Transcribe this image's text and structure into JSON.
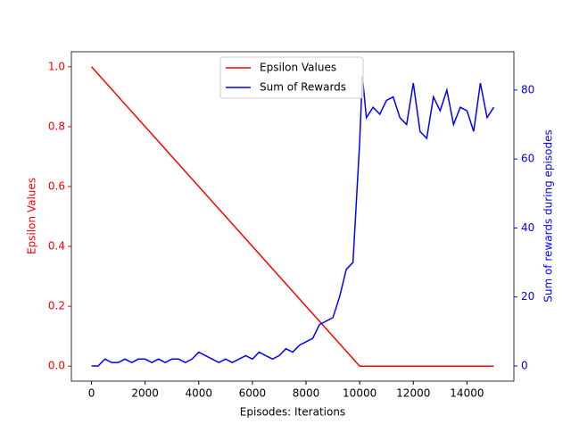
{
  "chart_data": {
    "type": "line",
    "xlabel": "Episodes: Iterations",
    "ylabel": "Epsilon Values",
    "y2label": "Sum of rewards during episodes",
    "ylabel_color": "#ff0000",
    "y2label_color": "#0000ff",
    "xlim": [
      -750,
      15750
    ],
    "ylim": [
      -0.05,
      1.05
    ],
    "y2lim": [
      -4.4,
      91.1
    ],
    "xticks": [
      0,
      2000,
      4000,
      6000,
      8000,
      10000,
      12000,
      14000
    ],
    "yticks": [
      {
        "value": 0,
        "label": "0.0"
      },
      {
        "value": 0.2,
        "label": "0.2"
      },
      {
        "value": 0.4,
        "label": "0.4"
      },
      {
        "value": 0.6,
        "label": "0.6"
      },
      {
        "value": 0.8,
        "label": "0.8"
      },
      {
        "value": 1,
        "label": "1.0"
      }
    ],
    "y2ticks": [
      0,
      20,
      40,
      60,
      80
    ],
    "legend": "upper center",
    "series": [
      {
        "name": "Epsilon Values",
        "color": "#ff0000",
        "x": [
          0,
          10000,
          15000
        ],
        "values": [
          1,
          0,
          0
        ]
      },
      {
        "name": "Sum of Rewards",
        "color": "#0000ff",
        "axis": "y2",
        "x": [
          0,
          250,
          500,
          750,
          1000,
          1250,
          1500,
          1750,
          2000,
          2250,
          2500,
          2750,
          3000,
          3250,
          3500,
          3750,
          4000,
          4250,
          4500,
          4750,
          5000,
          5250,
          5500,
          5750,
          6000,
          6250,
          6500,
          6750,
          7000,
          7250,
          7500,
          7750,
          8000,
          8250,
          8500,
          8750,
          9000,
          9250,
          9500,
          9750,
          10000,
          10100,
          10250,
          10500,
          10750,
          11000,
          11250,
          11500,
          11750,
          12000,
          12250,
          12500,
          12750,
          13000,
          13250,
          13500,
          13750,
          14000,
          14250,
          14500,
          14750,
          15000
        ],
        "values": [
          0,
          0,
          2,
          1,
          1,
          2,
          1,
          2,
          2,
          1,
          2,
          1,
          2,
          2,
          1,
          2,
          4,
          3,
          2,
          1,
          2,
          1,
          2,
          3,
          2,
          4,
          3,
          2,
          3,
          5,
          4,
          6,
          7,
          8,
          12,
          13,
          14,
          20,
          28,
          30,
          65,
          84,
          72,
          75,
          73,
          77,
          78,
          72,
          70,
          82,
          68,
          66,
          78,
          74,
          80,
          70,
          75,
          74,
          68,
          82,
          72,
          75
        ]
      }
    ]
  }
}
